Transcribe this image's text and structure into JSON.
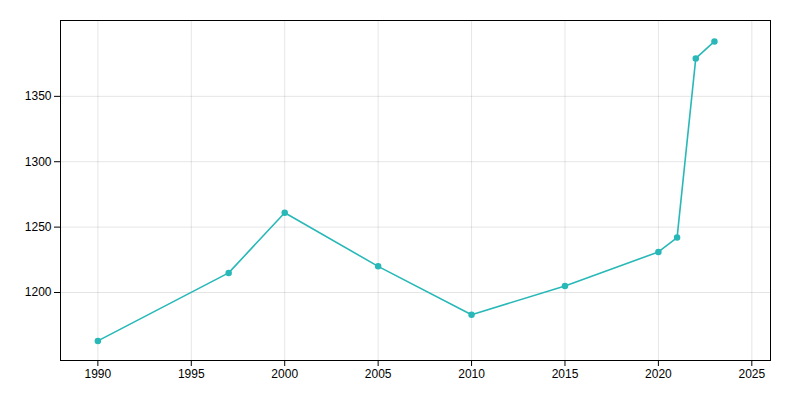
{
  "chart_data": {
    "type": "line",
    "x": [
      1990,
      1997,
      2000,
      2005,
      2010,
      2015,
      2020,
      2021,
      2022,
      2023
    ],
    "values": [
      1163,
      1215,
      1261,
      1220,
      1183,
      1205,
      1231,
      1242,
      1379,
      1392
    ],
    "color": "#29b8b8",
    "marker": "circle",
    "xlim": [
      1988,
      2026
    ],
    "ylim": [
      1148,
      1408
    ],
    "xticks": [
      1990,
      1995,
      2000,
      2005,
      2010,
      2015,
      2020,
      2025
    ],
    "yticks": [
      1200,
      1250,
      1300,
      1350
    ],
    "grid": true
  }
}
